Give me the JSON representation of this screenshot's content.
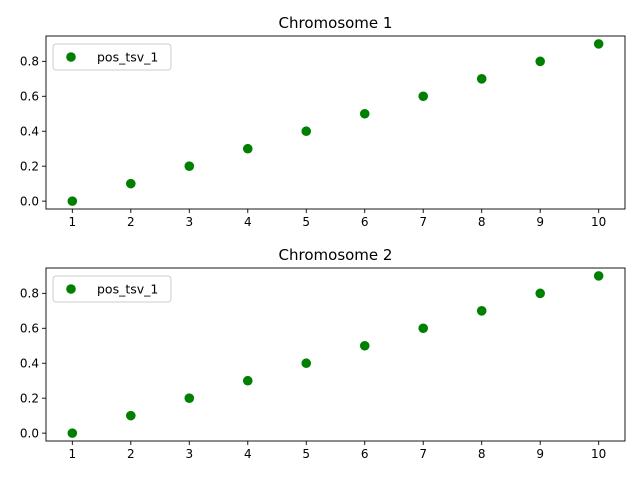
{
  "chart_data": [
    {
      "type": "scatter",
      "title": "Chromosome 1",
      "xlabel": "",
      "ylabel": "",
      "x": [
        1,
        2,
        3,
        4,
        5,
        6,
        7,
        8,
        9,
        10
      ],
      "series": [
        {
          "name": "pos_tsv_1",
          "color": "#008000",
          "y": [
            0.0,
            0.1,
            0.2,
            0.3,
            0.4,
            0.5,
            0.6,
            0.7,
            0.8,
            0.9
          ]
        }
      ],
      "xticks": [
        1,
        2,
        3,
        4,
        5,
        6,
        7,
        8,
        9,
        10
      ],
      "yticks": [
        "0.0",
        "0.2",
        "0.4",
        "0.6",
        "0.8"
      ],
      "xlim": [
        0.55,
        10.45
      ],
      "ylim": [
        -0.045,
        0.945
      ],
      "grid": false,
      "legend": "upper left"
    },
    {
      "type": "scatter",
      "title": "Chromosome 2",
      "xlabel": "",
      "ylabel": "",
      "x": [
        1,
        2,
        3,
        4,
        5,
        6,
        7,
        8,
        9,
        10
      ],
      "series": [
        {
          "name": "pos_tsv_1",
          "color": "#008000",
          "y": [
            0.0,
            0.1,
            0.2,
            0.3,
            0.4,
            0.5,
            0.6,
            0.7,
            0.8,
            0.9
          ]
        }
      ],
      "xticks": [
        1,
        2,
        3,
        4,
        5,
        6,
        7,
        8,
        9,
        10
      ],
      "yticks": [
        "0.0",
        "0.2",
        "0.4",
        "0.6",
        "0.8"
      ],
      "xlim": [
        0.55,
        10.45
      ],
      "ylim": [
        -0.045,
        0.945
      ],
      "grid": false,
      "legend": "upper left"
    }
  ]
}
